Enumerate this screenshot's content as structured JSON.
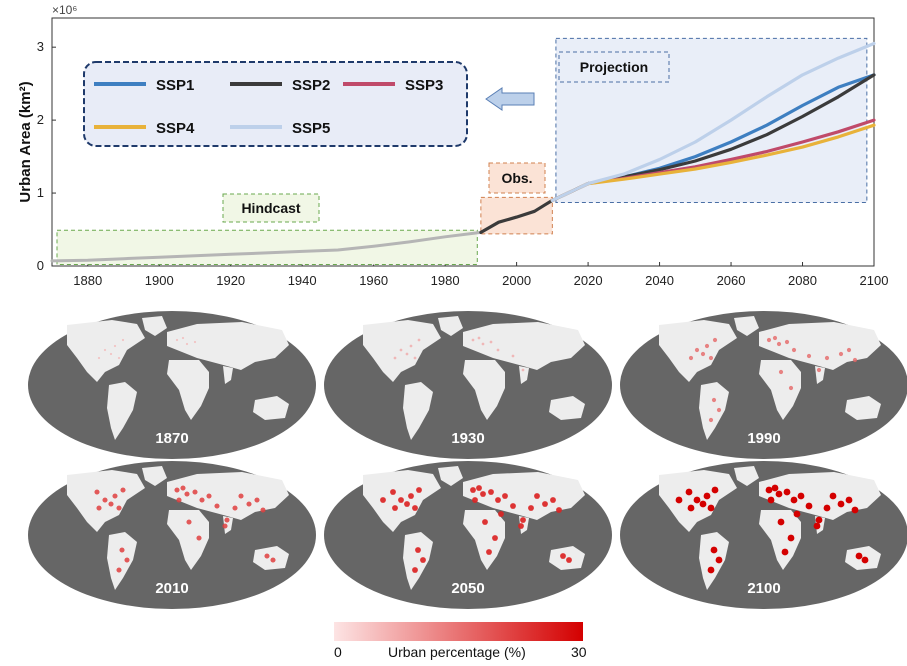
{
  "chart_data": {
    "type": "line",
    "ylabel": "Urban Area (km²)",
    "y_scale_note": "×10⁶",
    "xlim": [
      1870,
      2100
    ],
    "ylim": [
      0,
      3.4
    ],
    "x_ticks": [
      "1880",
      "1900",
      "1920",
      "1940",
      "1960",
      "1980",
      "2000",
      "2020",
      "2040",
      "2060",
      "2080",
      "2100"
    ],
    "y_ticks": [
      "0",
      "1",
      "2",
      "3"
    ],
    "legend_placement": "top-left",
    "colors": {
      "SSP1": "#3e7fc1",
      "SSP2": "#3b3b3b",
      "SSP3": "#c04a6a",
      "SSP4": "#e8b23a",
      "SSP5": "#bdd0ea",
      "hindcast": "#b5b5b5",
      "obs": "#3b3b3b"
    },
    "series": [
      {
        "name": "Hindcast",
        "x": [
          1870,
          1880,
          1890,
          1900,
          1910,
          1920,
          1930,
          1940,
          1950,
          1960,
          1970,
          1980,
          1990
        ],
        "y": [
          0.07,
          0.08,
          0.1,
          0.12,
          0.14,
          0.16,
          0.18,
          0.2,
          0.22,
          0.27,
          0.33,
          0.4,
          0.46
        ]
      },
      {
        "name": "Obs.",
        "x": [
          1990,
          1995,
          2000,
          2005,
          2008,
          2010
        ],
        "y": [
          0.46,
          0.6,
          0.67,
          0.75,
          0.84,
          0.9
        ]
      },
      {
        "name": "SSP1",
        "x": [
          2010,
          2020,
          2030,
          2040,
          2050,
          2060,
          2070,
          2080,
          2090,
          2100
        ],
        "y": [
          0.9,
          1.13,
          1.22,
          1.34,
          1.5,
          1.7,
          1.93,
          2.2,
          2.45,
          2.62
        ]
      },
      {
        "name": "SSP2",
        "x": [
          2010,
          2020,
          2030,
          2040,
          2050,
          2060,
          2070,
          2080,
          2090,
          2100
        ],
        "y": [
          0.9,
          1.13,
          1.22,
          1.32,
          1.44,
          1.6,
          1.8,
          2.05,
          2.32,
          2.62
        ]
      },
      {
        "name": "SSP3",
        "x": [
          2010,
          2020,
          2030,
          2040,
          2050,
          2060,
          2070,
          2080,
          2090,
          2100
        ],
        "y": [
          0.9,
          1.13,
          1.2,
          1.28,
          1.36,
          1.46,
          1.57,
          1.7,
          1.84,
          2.0
        ]
      },
      {
        "name": "SSP4",
        "x": [
          2010,
          2020,
          2030,
          2040,
          2050,
          2060,
          2070,
          2080,
          2090,
          2100
        ],
        "y": [
          0.9,
          1.13,
          1.19,
          1.26,
          1.33,
          1.42,
          1.52,
          1.63,
          1.77,
          1.93
        ]
      },
      {
        "name": "SSP5",
        "x": [
          2010,
          2020,
          2030,
          2040,
          2050,
          2060,
          2070,
          2080,
          2090,
          2100
        ],
        "y": [
          0.9,
          1.13,
          1.26,
          1.46,
          1.7,
          2.0,
          2.32,
          2.62,
          2.85,
          3.05
        ]
      }
    ],
    "legend": [
      "SSP1",
      "SSP2",
      "SSP3",
      "SSP4",
      "SSP5"
    ],
    "annotations": {
      "hindcast": "Hindcast",
      "obs": "Obs.",
      "projection": "Projection"
    }
  },
  "maps": {
    "titles": [
      "1870",
      "1930",
      "1990",
      "2010",
      "2050",
      "2100"
    ],
    "urban_intensity": [
      0.05,
      0.15,
      0.45,
      0.65,
      0.8,
      1.0
    ],
    "ocean_color": "#666666",
    "land_color": "#ededed"
  },
  "colorbar": {
    "label": "Urban percentage (%)",
    "min_label": "0",
    "max_label": "30",
    "color_low": "#fde4e4",
    "color_high": "#d40000"
  }
}
